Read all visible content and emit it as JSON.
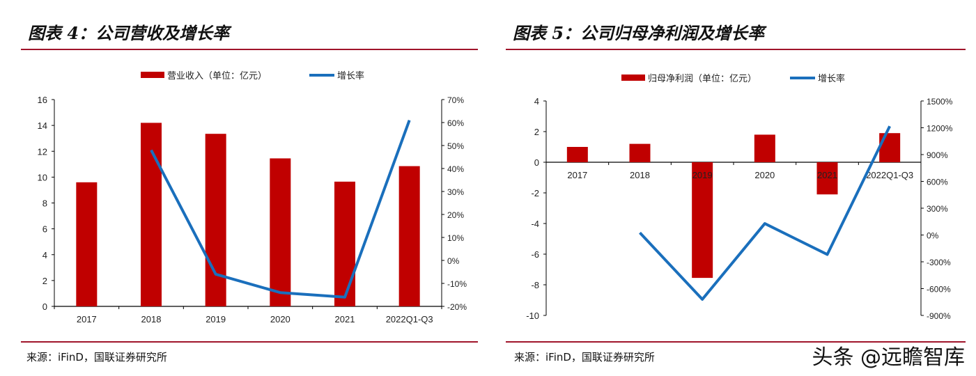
{
  "colors": {
    "bar": "#c00000",
    "line": "#1a6fbc",
    "rule": "#a0142a"
  },
  "watermark": "头条 @远瞻智库",
  "chart_data": [
    {
      "type": "bar+line",
      "title": "图表 4：公司营收及增长率",
      "source": "来源：iFinD，国联证券研究所",
      "categories": [
        "2017",
        "2018",
        "2019",
        "2020",
        "2021",
        "2022Q1-Q3"
      ],
      "series": [
        {
          "name": "营业收入（单位：亿元）",
          "type": "bar",
          "axis": "left",
          "values": [
            9.6,
            14.2,
            13.35,
            11.45,
            9.65,
            10.85
          ]
        },
        {
          "name": "增长率",
          "type": "line",
          "axis": "right",
          "values": [
            null,
            48,
            -6,
            -14,
            -16,
            61
          ]
        }
      ],
      "ylim": [
        0,
        16
      ],
      "yticks": [
        "0",
        "2",
        "4",
        "6",
        "8",
        "10",
        "12",
        "14",
        "16"
      ],
      "y2lim": [
        -20,
        70
      ],
      "y2ticks": [
        "-20%",
        "-10%",
        "0%",
        "10%",
        "20%",
        "30%",
        "40%",
        "50%",
        "60%",
        "70%"
      ],
      "legend": "top"
    },
    {
      "type": "bar+line",
      "title": "图表 5：公司归母净利润及增长率",
      "source": "来源：iFinD，国联证券研究所",
      "categories": [
        "2017",
        "2018",
        "2019",
        "2020",
        "2021",
        "2022Q1-Q3"
      ],
      "series": [
        {
          "name": "归母净利润（单位：亿元）",
          "type": "bar",
          "axis": "left",
          "values": [
            1.0,
            1.2,
            -7.55,
            1.8,
            -2.1,
            1.9
          ]
        },
        {
          "name": "增长率",
          "type": "line",
          "axis": "right",
          "values": [
            null,
            25,
            -720,
            128,
            -218,
            1218
          ]
        }
      ],
      "ylim": [
        -10,
        4
      ],
      "yticks": [
        "-10",
        "-8",
        "-6",
        "-4",
        "-2",
        "0",
        "2",
        "4"
      ],
      "y2lim": [
        -900,
        1500
      ],
      "y2ticks": [
        "-900%",
        "-600%",
        "-300%",
        "0%",
        "300%",
        "600%",
        "900%",
        "1200%",
        "1500%"
      ],
      "legend": "top"
    }
  ]
}
